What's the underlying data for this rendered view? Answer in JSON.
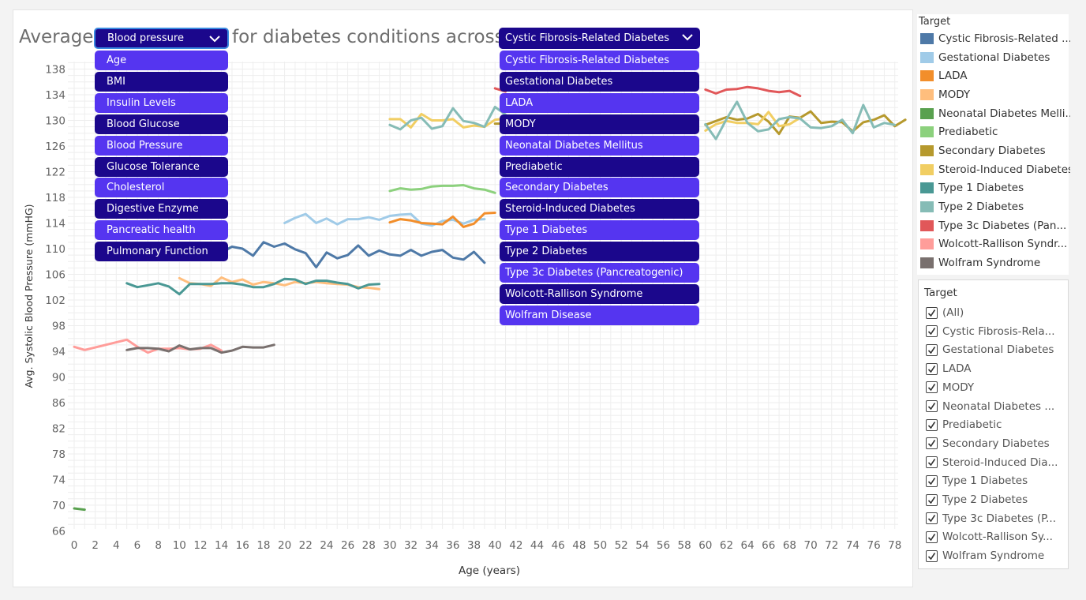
{
  "title": {
    "prefix": "Average",
    "middle": "for diabetes conditions across"
  },
  "measure_dropdown": {
    "selected": "Blood pressure",
    "options": [
      {
        "label": "Age",
        "color": "#5535f0"
      },
      {
        "label": "BMI",
        "color": "#1b078c"
      },
      {
        "label": "Insulin Levels",
        "color": "#5535f0"
      },
      {
        "label": "Blood Glucose",
        "color": "#1b078c"
      },
      {
        "label": "Blood Pressure",
        "color": "#5535f0"
      },
      {
        "label": "Glucose Tolerance",
        "color": "#1b078c"
      },
      {
        "label": "Cholesterol",
        "color": "#5535f0"
      },
      {
        "label": "Digestive Enzyme",
        "color": "#1b078c"
      },
      {
        "label": "Pancreatic health",
        "color": "#5535f0"
      },
      {
        "label": "Pulmonary Function",
        "color": "#1b078c"
      }
    ]
  },
  "condition_dropdown": {
    "selected": "Cystic Fibrosis-Related Diabetes",
    "options": [
      {
        "label": "Cystic Fibrosis-Related Diabetes",
        "color": "#5535f0"
      },
      {
        "label": "Gestational Diabetes",
        "color": "#1b078c"
      },
      {
        "label": "LADA",
        "color": "#5535f0"
      },
      {
        "label": "MODY",
        "color": "#1b078c"
      },
      {
        "label": "Neonatal Diabetes Mellitus",
        "color": "#5535f0"
      },
      {
        "label": "Prediabetic",
        "color": "#1b078c"
      },
      {
        "label": "Secondary Diabetes",
        "color": "#5535f0"
      },
      {
        "label": "Steroid-Induced Diabetes",
        "color": "#1b078c"
      },
      {
        "label": "Type 1 Diabetes",
        "color": "#5535f0"
      },
      {
        "label": "Type 2 Diabetes",
        "color": "#1b078c"
      },
      {
        "label": "Type 3c Diabetes (Pancreatogenic)",
        "color": "#5535f0"
      },
      {
        "label": "Wolcott-Rallison Syndrome",
        "color": "#1b078c"
      },
      {
        "label": "Wolfram Disease",
        "color": "#5535f0"
      }
    ]
  },
  "legend": {
    "title": "Target",
    "items": [
      {
        "label": "Cystic Fibrosis-Related ...",
        "color": "#4e79a7"
      },
      {
        "label": "Gestational Diabetes",
        "color": "#a0cbe8"
      },
      {
        "label": "LADA",
        "color": "#f28e2b"
      },
      {
        "label": "MODY",
        "color": "#ffbe7d"
      },
      {
        "label": "Neonatal Diabetes Melli...",
        "color": "#59a14f"
      },
      {
        "label": "Prediabetic",
        "color": "#8cd17d"
      },
      {
        "label": "Secondary Diabetes",
        "color": "#b6992d"
      },
      {
        "label": "Steroid-Induced Diabetes",
        "color": "#f1ce63"
      },
      {
        "label": "Type 1 Diabetes",
        "color": "#499894"
      },
      {
        "label": "Type 2 Diabetes",
        "color": "#86bcb6"
      },
      {
        "label": "Type 3c Diabetes (Pan...",
        "color": "#e15759"
      },
      {
        "label": "Wolcott-Rallison Syndr...",
        "color": "#ff9d9a"
      },
      {
        "label": "Wolfram Syndrome",
        "color": "#79706e"
      }
    ]
  },
  "filter": {
    "title": "Target",
    "items": [
      {
        "label": "(All)",
        "checked": true
      },
      {
        "label": "Cystic Fibrosis-Rela...",
        "checked": true
      },
      {
        "label": "Gestational Diabetes",
        "checked": true
      },
      {
        "label": "LADA",
        "checked": true
      },
      {
        "label": "MODY",
        "checked": true
      },
      {
        "label": "Neonatal Diabetes ...",
        "checked": true
      },
      {
        "label": "Prediabetic",
        "checked": true
      },
      {
        "label": "Secondary Diabetes",
        "checked": true
      },
      {
        "label": "Steroid-Induced Dia...",
        "checked": true
      },
      {
        "label": "Type 1 Diabetes",
        "checked": true
      },
      {
        "label": "Type 2 Diabetes",
        "checked": true
      },
      {
        "label": "Type 3c Diabetes (P...",
        "checked": true
      },
      {
        "label": "Wolcott-Rallison Sy...",
        "checked": true
      },
      {
        "label": "Wolfram Syndrome",
        "checked": true
      }
    ]
  },
  "chart_data": {
    "type": "line",
    "xlabel": "Age (years)",
    "ylabel": "Avg. Systolic Blood Pressure (mmHG)",
    "xlim": [
      -0.5,
      80
    ],
    "ylim": [
      64.5,
      140
    ],
    "x_ticks": [
      0,
      2,
      4,
      6,
      8,
      10,
      12,
      14,
      16,
      18,
      20,
      22,
      24,
      26,
      28,
      30,
      32,
      34,
      36,
      38,
      40,
      42,
      44,
      46,
      48,
      50,
      52,
      54,
      56,
      58,
      60,
      62,
      64,
      66,
      68,
      70,
      72,
      74,
      76,
      78
    ],
    "y_ticks": [
      66,
      70,
      74,
      78,
      82,
      86,
      90,
      94,
      98,
      102,
      106,
      110,
      114,
      118,
      122,
      126,
      130,
      134,
      138
    ],
    "grid": true,
    "legend_position": "right",
    "series": [
      {
        "name": "Cystic Fibrosis-Related Diabetes",
        "color": "#4e79a7",
        "x": [
          12,
          13,
          14,
          15,
          16,
          17,
          18,
          19,
          20,
          21,
          22,
          23,
          24,
          25,
          26,
          27,
          28,
          29,
          30,
          31,
          32,
          33,
          34,
          35,
          36,
          37,
          38,
          39
        ],
        "y": [
          110.2,
          110.5,
          109.4,
          110.3,
          110.0,
          108.9,
          111.0,
          110.3,
          110.8,
          109.9,
          109.3,
          107.1,
          109.4,
          108.5,
          109.0,
          110.5,
          108.9,
          109.7,
          109.1,
          108.9,
          109.8,
          108.9,
          109.5,
          109.8,
          108.6,
          108.3,
          109.5,
          107.8
        ]
      },
      {
        "name": "Gestational Diabetes",
        "color": "#a0cbe8",
        "x": [
          20,
          21,
          22,
          23,
          24,
          25,
          26,
          27,
          28,
          29,
          30,
          31,
          32,
          33,
          34,
          35,
          36,
          37,
          38,
          39
        ],
        "y": [
          114.0,
          114.8,
          115.4,
          114.0,
          114.7,
          113.8,
          114.6,
          114.6,
          114.9,
          114.5,
          115.1,
          115.3,
          115.4,
          113.9,
          113.6,
          114.3,
          114.5,
          113.9,
          114.5,
          114.6
        ]
      },
      {
        "name": "LADA",
        "color": "#f28e2b",
        "x": [
          30,
          31,
          32,
          33,
          34,
          35,
          36,
          37,
          38,
          39,
          40
        ],
        "y": [
          114.1,
          114.6,
          114.4,
          114.0,
          113.9,
          113.8,
          115.0,
          113.4,
          113.9,
          115.5,
          115.6
        ]
      },
      {
        "name": "MODY",
        "color": "#ffbe7d",
        "x": [
          10,
          11,
          12,
          13,
          14,
          15,
          16,
          17,
          18,
          19,
          20,
          21,
          22,
          23,
          24,
          25,
          26,
          27,
          28,
          29
        ],
        "y": [
          105.4,
          104.6,
          104.5,
          104.2,
          105.5,
          104.8,
          105.2,
          104.4,
          104.8,
          104.6,
          104.3,
          104.8,
          104.6,
          104.8,
          104.6,
          104.5,
          104.4,
          104.0,
          103.9,
          103.7
        ]
      },
      {
        "name": "Neonatal Diabetes Mellitus",
        "color": "#59a14f",
        "x": [
          0,
          1
        ],
        "y": [
          69.5,
          69.3
        ]
      },
      {
        "name": "Prediabetic",
        "color": "#8cd17d",
        "x": [
          30,
          31,
          32,
          33,
          34,
          35,
          36,
          37,
          38,
          39,
          40
        ],
        "y": [
          119.0,
          119.4,
          119.2,
          119.3,
          119.7,
          119.8,
          119.8,
          119.9,
          119.4,
          119.2,
          118.7
        ]
      },
      {
        "name": "Secondary Diabetes",
        "color": "#b6992d",
        "x": [
          40,
          41,
          60,
          61,
          62,
          63,
          64,
          65,
          66,
          67,
          68,
          69,
          70,
          71,
          72,
          73,
          74,
          75,
          76,
          77,
          78,
          79
        ],
        "y": [
          129.5,
          129.5,
          129.3,
          129.9,
          130.5,
          130.1,
          130.3,
          131.0,
          129.8,
          127.9,
          130.6,
          130.4,
          131.4,
          129.6,
          129.8,
          129.7,
          128.3,
          129.7,
          130.1,
          130.8,
          129.1,
          130.1
        ]
      },
      {
        "name": "Steroid-Induced Diabetes",
        "color": "#f1ce63",
        "x": [
          30,
          31,
          32,
          33,
          34,
          35,
          36,
          37,
          38,
          39,
          40,
          41,
          60,
          61,
          62,
          63,
          64,
          65,
          66,
          67,
          68,
          69
        ],
        "y": [
          130.2,
          130.2,
          128.9,
          131.0,
          130.0,
          130.0,
          130.2,
          128.9,
          129.2,
          129.0,
          130.1,
          130.3,
          128.4,
          129.4,
          129.9,
          129.6,
          129.6,
          129.4,
          131.3,
          129.1,
          129.4,
          130.4
        ]
      },
      {
        "name": "Type 1 Diabetes",
        "color": "#499894",
        "x": [
          5,
          6,
          7,
          8,
          9,
          10,
          11,
          12,
          13,
          14,
          15,
          16,
          17,
          18,
          19,
          20,
          21,
          22,
          23,
          24,
          25,
          26,
          27,
          28,
          29
        ],
        "y": [
          104.6,
          104.0,
          104.3,
          104.6,
          104.1,
          102.9,
          104.5,
          104.5,
          104.5,
          104.6,
          104.6,
          104.4,
          104.0,
          104.0,
          104.5,
          105.3,
          105.2,
          104.5,
          105.0,
          105.0,
          104.7,
          104.5,
          103.8,
          104.4,
          104.5
        ]
      },
      {
        "name": "Type 2 Diabetes",
        "color": "#86bcb6",
        "x": [
          30,
          31,
          32,
          33,
          34,
          35,
          36,
          37,
          38,
          39,
          40,
          41,
          60,
          61,
          62,
          63,
          64,
          65,
          66,
          67,
          68,
          69,
          70,
          71,
          72,
          73,
          74,
          75,
          76,
          77,
          78
        ],
        "y": [
          129.3,
          128.6,
          130.0,
          130.4,
          128.7,
          129.1,
          131.9,
          129.9,
          129.6,
          129.0,
          132.1,
          130.9,
          129.4,
          127.1,
          130.2,
          132.9,
          129.6,
          128.3,
          128.6,
          130.2,
          130.5,
          130.3,
          128.9,
          128.8,
          129.1,
          130.1,
          128.0,
          132.4,
          128.9,
          129.6,
          129.3
        ]
      },
      {
        "name": "Type 3c Diabetes (Pancreatogenic)",
        "color": "#e15759",
        "x": [
          40,
          41,
          60,
          61,
          62,
          63,
          64,
          65,
          66,
          67,
          68,
          69
        ],
        "y": [
          135.0,
          134.5,
          134.8,
          134.2,
          134.8,
          134.9,
          135.2,
          135.0,
          134.6,
          134.4,
          134.6,
          133.8
        ]
      },
      {
        "name": "Wolcott-Rallison Syndrome",
        "color": "#ff9d9a",
        "x": [
          0,
          1,
          2,
          3,
          4,
          5,
          6,
          7,
          8,
          9,
          10,
          11,
          12,
          13,
          14
        ],
        "y": [
          94.7,
          94.2,
          94.6,
          95.0,
          95.4,
          95.8,
          94.7,
          93.8,
          94.4,
          94.4,
          94.5,
          94.3,
          94.4,
          95.0,
          94.1
        ]
      },
      {
        "name": "Wolfram Syndrome",
        "color": "#79706e",
        "x": [
          5,
          6,
          7,
          8,
          9,
          10,
          11,
          12,
          13,
          14,
          15,
          16,
          17,
          18,
          19
        ],
        "y": [
          94.2,
          94.5,
          94.5,
          94.4,
          94.0,
          94.9,
          94.3,
          94.5,
          94.5,
          93.8,
          94.1,
          94.7,
          94.6,
          94.6,
          95.0
        ]
      }
    ]
  }
}
